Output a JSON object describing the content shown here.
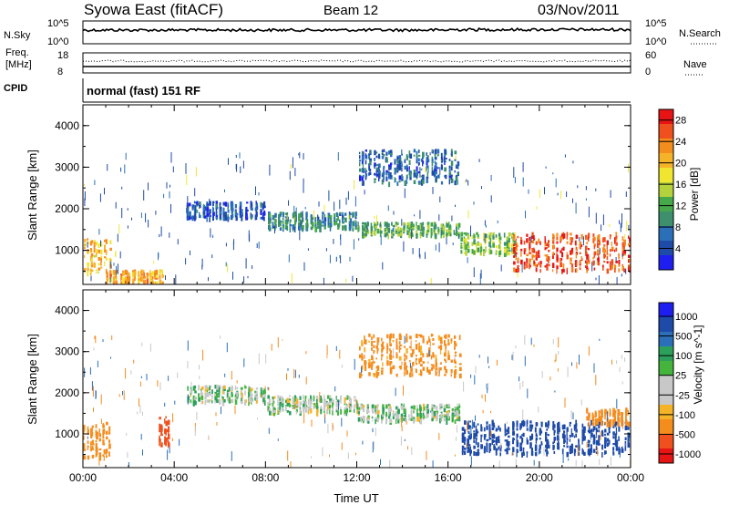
{
  "header": {
    "station": "Syowa East (fitACF)",
    "beam": "Beam 12",
    "date": "03/Nov/2011"
  },
  "noise_panel": {
    "left_label": "N.Sky",
    "right_label": "N.Search",
    "tick_top_left": "10^5",
    "tick_bottom_left": "10^0",
    "tick_top_right": "10^5",
    "tick_bottom_right": "10^0"
  },
  "freq_panel": {
    "left_label_1": "Freq.",
    "left_label_2": "[MHz]",
    "right_label": "Nave",
    "left_ticks": [
      "18",
      "8"
    ],
    "right_ticks": [
      "60",
      "0"
    ]
  },
  "cpid": {
    "label": "CPID",
    "mode": "normal (fast) 151 RF"
  },
  "colors": {
    "power_scale": [
      "#1e1ef0",
      "#1e4aa8",
      "#2a6fb8",
      "#3e8f6e",
      "#45a84a",
      "#b4d23c",
      "#f0e630",
      "#f5b428",
      "#f58c1e",
      "#f0501e",
      "#e61414"
    ],
    "velocity_scale": [
      "#e61414",
      "#f0501e",
      "#f58c1e",
      "#f5b428",
      "#c8c8c8",
      "#c8c8c8",
      "#45b43c",
      "#2ca05a",
      "#2a6fb8",
      "#1e4aa8",
      "#1e1ef0"
    ]
  },
  "chart_data": [
    {
      "type": "heatmap",
      "panel": "power",
      "ylabel": "Slant Range [km]",
      "xlabel": "",
      "y_ticks": [
        "1000",
        "2000",
        "3000",
        "4000"
      ],
      "ylim": [
        180,
        4500
      ],
      "x_ticks": [
        "00:00",
        "04:00",
        "08:00",
        "12:00",
        "16:00",
        "20:00",
        "00:00"
      ],
      "colorbar_label": "Power [dB]",
      "colorbar_ticks": [
        "4",
        "8",
        "12",
        "16",
        "20",
        "24",
        "28"
      ],
      "colorbar_range": [
        0,
        30
      ],
      "regions": [
        {
          "t": [
            0.0,
            1.2
          ],
          "r": [
            450,
            1250
          ],
          "value": 20
        },
        {
          "t": [
            1.0,
            3.5
          ],
          "r": [
            200,
            500
          ],
          "value": 22
        },
        {
          "t": [
            4.5,
            8.0
          ],
          "r": [
            1750,
            2150
          ],
          "value": 5
        },
        {
          "t": [
            8.0,
            12.0
          ],
          "r": [
            1500,
            1900
          ],
          "value": 9
        },
        {
          "t": [
            12.0,
            16.5
          ],
          "r": [
            1350,
            1650
          ],
          "value": 12
        },
        {
          "t": [
            12.0,
            16.5
          ],
          "r": [
            2600,
            3400
          ],
          "value": 6
        },
        {
          "t": [
            16.5,
            19.0
          ],
          "r": [
            900,
            1400
          ],
          "value": 14
        },
        {
          "t": [
            18.8,
            24.0
          ],
          "r": [
            500,
            1400
          ],
          "value": 26
        }
      ]
    },
    {
      "type": "heatmap",
      "panel": "velocity",
      "ylabel": "Slant Range [km]",
      "xlabel": "Time UT",
      "y_ticks": [
        "1000",
        "2000",
        "3000",
        "4000"
      ],
      "ylim": [
        180,
        4500
      ],
      "x_ticks": [
        "00:00",
        "04:00",
        "08:00",
        "12:00",
        "16:00",
        "20:00",
        "00:00"
      ],
      "colorbar_label": "Velocity [m s^-1]",
      "colorbar_ticks": [
        "1000",
        "500",
        "100",
        "25",
        "-25",
        "-100",
        "-500",
        "-1000"
      ],
      "colorbar_range": [
        -1000,
        1000
      ],
      "regions": [
        {
          "t": [
            0.0,
            1.2
          ],
          "r": [
            400,
            1250
          ],
          "value": -200
        },
        {
          "t": [
            3.3,
            3.8
          ],
          "r": [
            700,
            1400
          ],
          "value": -900
        },
        {
          "t": [
            4.5,
            8.0
          ],
          "r": [
            1750,
            2150
          ],
          "value": 0
        },
        {
          "t": [
            8.0,
            12.0
          ],
          "r": [
            1500,
            1900
          ],
          "value": 0
        },
        {
          "t": [
            12.0,
            16.5
          ],
          "r": [
            1300,
            1700
          ],
          "value": 0
        },
        {
          "t": [
            12.0,
            16.5
          ],
          "r": [
            2400,
            3400
          ],
          "value": -150
        },
        {
          "t": [
            16.5,
            24.0
          ],
          "r": [
            500,
            1300
          ],
          "value": 600
        },
        {
          "t": [
            22.0,
            24.0
          ],
          "r": [
            1200,
            1600
          ],
          "value": -300
        }
      ]
    }
  ]
}
